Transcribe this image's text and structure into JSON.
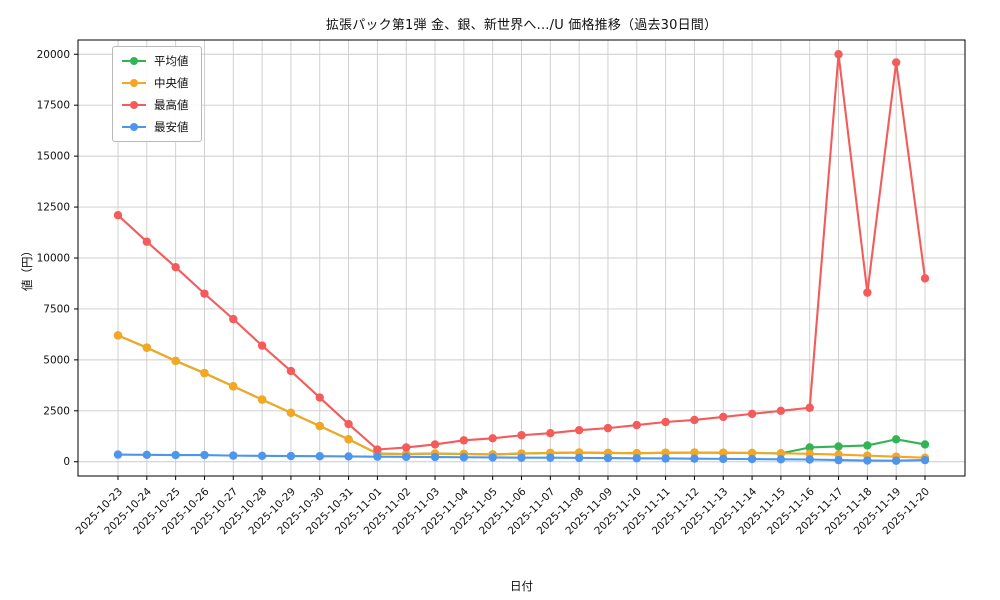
{
  "title": "拡張パック第1弾 金、銀、新世界へ.../U 価格推移（過去30日間）",
  "chart_data": {
    "type": "line",
    "title": "拡張パック第1弾 金、銀、新世界へ.../U 価格推移（過去30日間）",
    "xlabel": "日付",
    "ylabel": "値（円）",
    "grid": true,
    "legend_position": "upper left",
    "y_min": -700,
    "y_max": 20700,
    "yticks": [
      0,
      2500,
      5000,
      7500,
      10000,
      12500,
      15000,
      17500,
      20000
    ],
    "x": [
      "2025-10-23",
      "2025-10-24",
      "2025-10-25",
      "2025-10-26",
      "2025-10-27",
      "2025-10-28",
      "2025-10-29",
      "2025-10-30",
      "2025-10-31",
      "2025-11-01",
      "2025-11-02",
      "2025-11-03",
      "2025-11-04",
      "2025-11-05",
      "2025-11-06",
      "2025-11-07",
      "2025-11-08",
      "2025-11-09",
      "2025-11-10",
      "2025-11-11",
      "2025-11-12",
      "2025-11-13",
      "2025-11-14",
      "2025-11-15",
      "2025-11-16",
      "2025-11-17",
      "2025-11-18",
      "2025-11-19",
      "2025-11-20"
    ],
    "series": [
      {
        "name": "平均値",
        "color": "#33b454",
        "values": [
          6200,
          5600,
          4950,
          4350,
          3700,
          3050,
          2400,
          1750,
          1100,
          400,
          380,
          400,
          380,
          360,
          400,
          430,
          450,
          430,
          420,
          440,
          450,
          440,
          430,
          410,
          700,
          750,
          800,
          1100,
          850
        ]
      },
      {
        "name": "中央値",
        "color": "#f5a623",
        "values": [
          6200,
          5600,
          4950,
          4350,
          3700,
          3050,
          2400,
          1750,
          1100,
          400,
          380,
          400,
          380,
          360,
          400,
          430,
          450,
          430,
          420,
          440,
          450,
          440,
          430,
          410,
          390,
          350,
          300,
          250,
          200
        ]
      },
      {
        "name": "最高値",
        "color": "#f45b5b",
        "values": [
          12100,
          10800,
          9550,
          8250,
          7000,
          5700,
          4450,
          3150,
          1850,
          600,
          700,
          850,
          1050,
          1150,
          1300,
          1400,
          1550,
          1650,
          1800,
          1950,
          2050,
          2200,
          2350,
          2500,
          2650,
          20000,
          8300,
          19600,
          9000
        ]
      },
      {
        "name": "最安値",
        "color": "#4d96ec",
        "values": [
          350,
          340,
          330,
          330,
          300,
          290,
          280,
          270,
          260,
          250,
          240,
          230,
          220,
          210,
          200,
          200,
          190,
          180,
          170,
          160,
          150,
          140,
          130,
          120,
          110,
          80,
          60,
          50,
          80
        ]
      }
    ],
    "colors": {
      "grid": "#cccccc",
      "spine": "#000000",
      "background": "#ffffff"
    }
  }
}
